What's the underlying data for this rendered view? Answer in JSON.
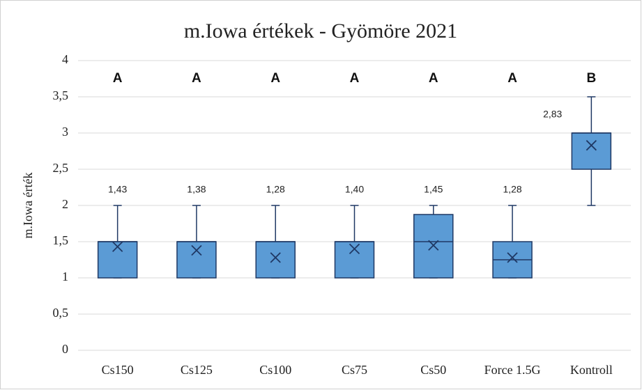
{
  "chart_data": {
    "type": "box",
    "title": "m.Iowa értékek - Gyömöre 2021",
    "ylabel": "m.Iowa érték",
    "categories": [
      "Cs150",
      "Cs125",
      "Cs100",
      "Cs75",
      "Cs50",
      "Force 1.5G",
      "Kontroll"
    ],
    "group_letters": [
      "A",
      "A",
      "A",
      "A",
      "A",
      "A",
      "B"
    ],
    "min": [
      1,
      1,
      1,
      1,
      1,
      1,
      2
    ],
    "q1": [
      1,
      1,
      1,
      1,
      1,
      1,
      2.5
    ],
    "median": [
      1.5,
      1.5,
      1.5,
      1.5,
      1.5,
      1.25,
      3
    ],
    "q3": [
      1.5,
      1.5,
      1.5,
      1.5,
      1.875,
      1.5,
      3
    ],
    "max": [
      2,
      2,
      2,
      2,
      2,
      2,
      3.5
    ],
    "means": [
      1.43,
      1.38,
      1.28,
      1.4,
      1.45,
      1.28,
      2.83
    ],
    "value_labels": [
      "1,43",
      "1,38",
      "1,28",
      "1,40",
      "1,45",
      "1,28",
      "2,83"
    ],
    "color": "#5b9bd5",
    "edge_color": "#1f3864",
    "ylim": [
      0,
      4
    ],
    "yticks": [
      0,
      {
        "value": 0.5,
        "label": "0,5"
      },
      1,
      {
        "value": 1.5,
        "label": "1,5"
      },
      2,
      {
        "value": 2.5,
        "label": "2,5"
      },
      3,
      {
        "value": 3.5,
        "label": "3,5"
      },
      4
    ],
    "grid": true
  }
}
